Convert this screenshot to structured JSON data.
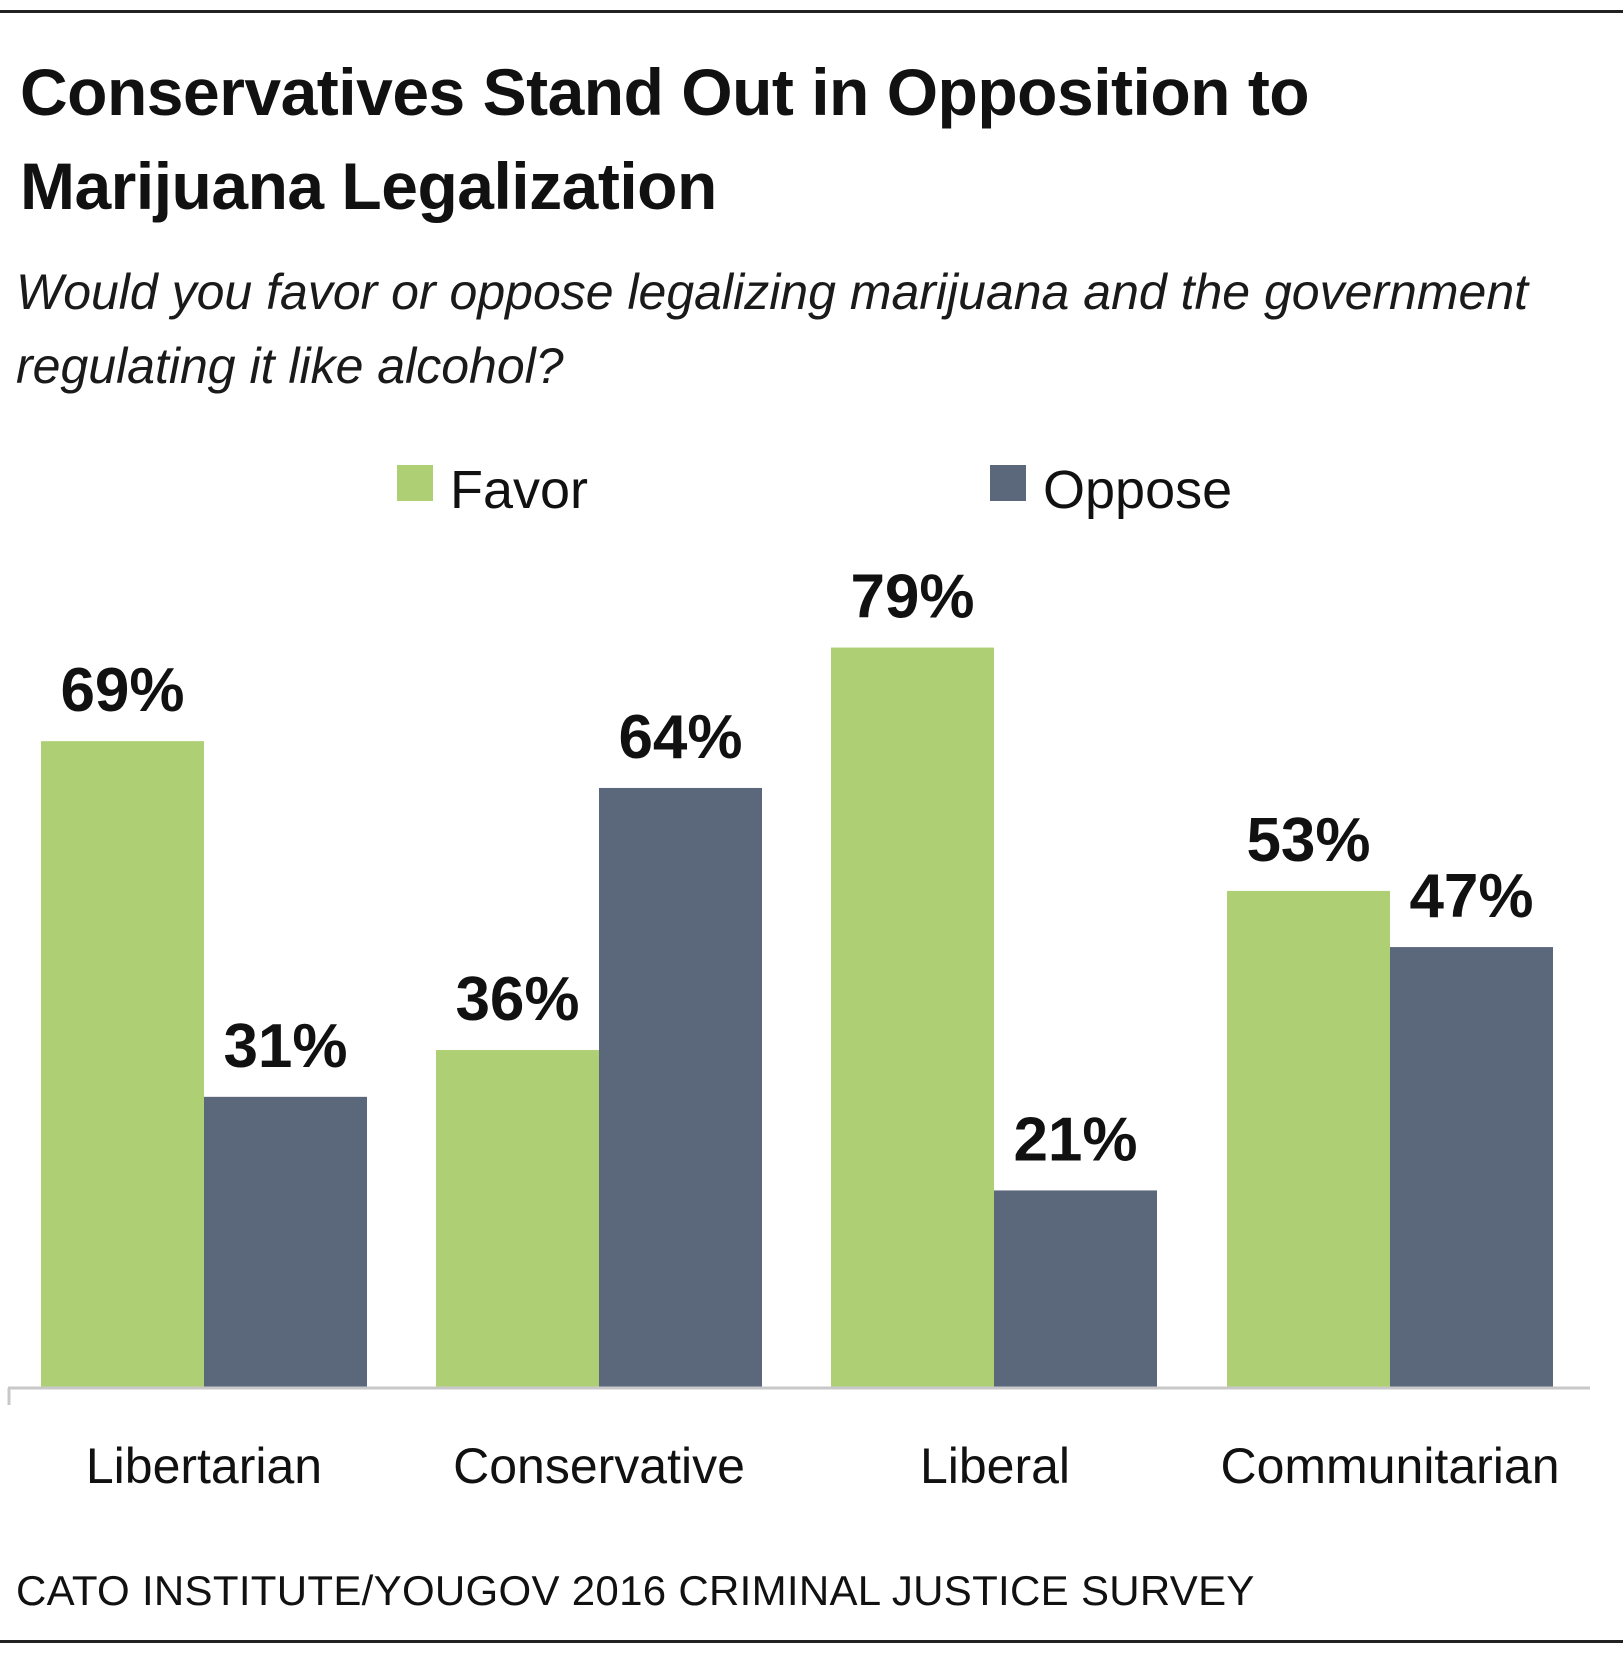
{
  "title": "Conservatives Stand Out in Opposition to Marijuana Legalization",
  "subtitle": "Would you favor or oppose legalizing marijuana and the government regulating it like alcohol?",
  "source": "CATO INSTITUTE/YOUGOV 2016 CRIMINAL JUSTICE SURVEY",
  "colors": {
    "favor": "#aecf73",
    "oppose": "#5b687b",
    "axis": "#c8c8c8"
  },
  "chart_data": {
    "type": "bar",
    "categories": [
      "Libertarian",
      "Conservative",
      "Liberal",
      "Communitarian"
    ],
    "series": [
      {
        "name": "Favor",
        "values": [
          69,
          36,
          79,
          53
        ],
        "labels": [
          "69%",
          "36%",
          "79%",
          "53%"
        ]
      },
      {
        "name": "Oppose",
        "values": [
          31,
          64,
          21,
          47
        ],
        "labels": [
          "31%",
          "64%",
          "21%",
          "47%"
        ]
      }
    ],
    "ylim": [
      0,
      100
    ],
    "grid": false,
    "legend": "top-center"
  }
}
